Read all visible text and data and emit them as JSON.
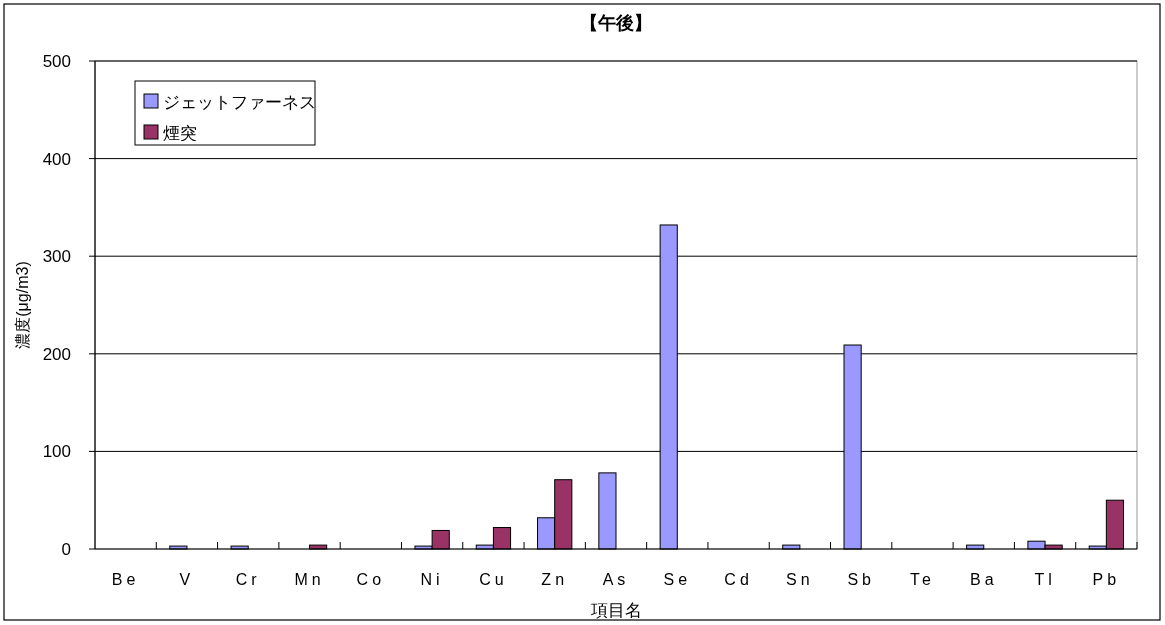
{
  "chart_data": {
    "type": "bar",
    "title": "【午後】",
    "xlabel": "項目名",
    "ylabel": "濃度(μg/m3)",
    "categories": [
      "Be",
      "V",
      "Cr",
      "Mn",
      "Co",
      "Ni",
      "Cu",
      "Zn",
      "As",
      "Se",
      "Cd",
      "Sn",
      "Sb",
      "Te",
      "Ba",
      "Tl",
      "Pb"
    ],
    "series": [
      {
        "name": "ジェットファーネス",
        "color": "#9999ff",
        "values": [
          0,
          3,
          3,
          0,
          0,
          3,
          4,
          32,
          78,
          332,
          0,
          4,
          209,
          0,
          4,
          8,
          3
        ]
      },
      {
        "name": "煙突",
        "color": "#993366",
        "values": [
          0,
          0,
          0,
          4,
          0,
          19,
          22,
          71,
          0,
          0,
          0,
          0,
          0,
          0,
          0,
          4,
          50
        ]
      }
    ],
    "ylim": [
      0,
      500
    ],
    "yticks": [
      0,
      100,
      200,
      300,
      400,
      500
    ],
    "grid": "y",
    "legend": "top left"
  }
}
